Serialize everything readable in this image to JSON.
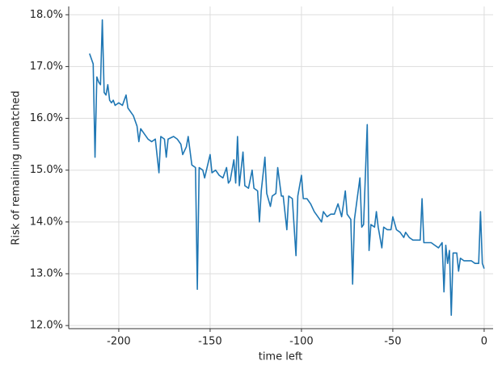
{
  "chart_data": {
    "type": "line",
    "x_label": "time left",
    "y_label": "Risk of remaining unmatched",
    "x": [
      -216,
      -214,
      -213,
      -212,
      -211,
      -210,
      -209,
      -208,
      -207,
      -206,
      -205,
      -204,
      -203,
      -202,
      -200,
      -198,
      -196,
      -195,
      -192,
      -190,
      -189,
      -188,
      -186,
      -184,
      -182,
      -180,
      -178,
      -177,
      -175,
      -174,
      -173,
      -170,
      -168,
      -166,
      -165,
      -163,
      -162,
      -160,
      -158,
      -157,
      -156,
      -154,
      -153,
      -152,
      -150,
      -149,
      -147,
      -145,
      -143,
      -141,
      -140,
      -139,
      -137,
      -136,
      -135,
      -134,
      -132,
      -131,
      -129,
      -127,
      -126,
      -124,
      -123,
      -122,
      -120,
      -119,
      -117,
      -116,
      -114,
      -113,
      -111,
      -110,
      -108,
      -107,
      -105,
      -103,
      -102,
      -100,
      -99,
      -97,
      -95,
      -93,
      -91,
      -89,
      -88,
      -86,
      -84,
      -82,
      -80,
      -78,
      -76,
      -75,
      -73,
      -72,
      -71,
      -68,
      -67,
      -66,
      -64,
      -63,
      -62,
      -60,
      -59,
      -58,
      -56,
      -55,
      -53,
      -51,
      -50,
      -48,
      -46,
      -44,
      -43,
      -41,
      -39,
      -37,
      -35,
      -34,
      -33,
      -31,
      -29,
      -27,
      -25,
      -23,
      -22,
      -21,
      -20,
      -19,
      -18,
      -17,
      -15,
      -14,
      -13,
      -11,
      -9,
      -7,
      -5,
      -3,
      -2,
      -1,
      0
    ],
    "series": [
      {
        "name": "risk",
        "color": "#1f77b4",
        "values": [
          17.25,
          17.05,
          15.25,
          16.8,
          16.7,
          16.65,
          17.9,
          16.5,
          16.45,
          16.65,
          16.35,
          16.3,
          16.35,
          16.25,
          16.3,
          16.25,
          16.45,
          16.2,
          16.05,
          15.85,
          15.55,
          15.8,
          15.7,
          15.6,
          15.55,
          15.6,
          14.95,
          15.65,
          15.6,
          15.25,
          15.6,
          15.65,
          15.6,
          15.5,
          15.3,
          15.45,
          15.65,
          15.1,
          15.05,
          12.7,
          15.05,
          15.0,
          14.85,
          15.0,
          15.3,
          14.95,
          15.0,
          14.9,
          14.85,
          15.05,
          14.75,
          14.8,
          15.2,
          14.75,
          15.65,
          14.7,
          15.35,
          14.7,
          14.65,
          15.0,
          14.65,
          14.6,
          14.0,
          14.6,
          15.25,
          14.55,
          14.3,
          14.5,
          14.55,
          15.05,
          14.5,
          14.5,
          13.85,
          14.5,
          14.45,
          13.35,
          14.5,
          14.9,
          14.45,
          14.45,
          14.35,
          14.2,
          14.1,
          14.0,
          14.2,
          14.1,
          14.15,
          14.15,
          14.35,
          14.1,
          14.6,
          14.15,
          14.05,
          12.8,
          14.05,
          14.85,
          13.9,
          13.95,
          15.88,
          13.45,
          13.95,
          13.9,
          14.2,
          13.9,
          13.5,
          13.9,
          13.85,
          13.85,
          14.1,
          13.85,
          13.8,
          13.7,
          13.8,
          13.7,
          13.65,
          13.65,
          13.65,
          14.45,
          13.6,
          13.6,
          13.6,
          13.55,
          13.5,
          13.6,
          12.65,
          13.55,
          13.2,
          13.45,
          12.2,
          13.4,
          13.4,
          13.05,
          13.3,
          13.25,
          13.25,
          13.25,
          13.2,
          13.2,
          14.2,
          13.2,
          13.1
        ]
      }
    ],
    "xlim": [
      -227.4,
      4.9
    ],
    "ylim": [
      11.94,
      18.16
    ],
    "xticks": [
      -200,
      -150,
      -100,
      -50,
      0
    ],
    "yticks": [
      {
        "value": 12,
        "label": "12.0%"
      },
      {
        "value": 13,
        "label": "13.0%"
      },
      {
        "value": 14,
        "label": "14.0%"
      },
      {
        "value": 15,
        "label": "15.0%"
      },
      {
        "value": 16,
        "label": "16.0%"
      },
      {
        "value": 17,
        "label": "17.0%"
      },
      {
        "value": 18,
        "label": "18.0%"
      }
    ],
    "grid": true
  }
}
